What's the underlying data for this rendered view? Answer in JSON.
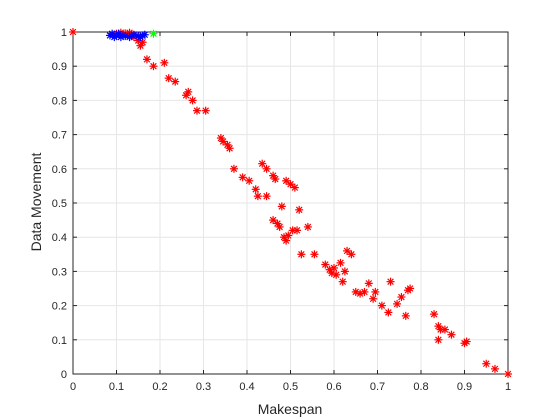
{
  "chart_data": {
    "type": "scatter",
    "title": "",
    "xlabel": "Makespan",
    "ylabel": "Data Movement",
    "xlim": [
      0,
      1
    ],
    "ylim": [
      0,
      1
    ],
    "grid": true,
    "legend": "none",
    "xticks": [
      "0",
      "0.1",
      "0.2",
      "0.3",
      "0.4",
      "0.5",
      "0.6",
      "0.7",
      "0.8",
      "0.9",
      "1"
    ],
    "yticks": [
      "0",
      "0.1",
      "0.2",
      "0.3",
      "0.4",
      "0.5",
      "0.6",
      "0.7",
      "0.8",
      "0.9",
      "1"
    ],
    "marker": "asterisk",
    "colors": {
      "red": "#ff0000",
      "blue": "#0000ff",
      "green": "#00ff00",
      "grid": "#e6e6e6",
      "axis": "#262626"
    },
    "series": [
      {
        "color": "#ff0000",
        "points": [
          [
            0.0,
            1.0
          ],
          [
            0.1,
            0.995
          ],
          [
            0.11,
            0.998
          ],
          [
            0.12,
            0.996
          ],
          [
            0.125,
            0.992
          ],
          [
            0.13,
            0.998
          ],
          [
            0.135,
            0.99
          ],
          [
            0.14,
            0.985
          ],
          [
            0.145,
            0.99
          ],
          [
            0.15,
            0.975
          ],
          [
            0.155,
            0.96
          ],
          [
            0.16,
            0.97
          ],
          [
            0.17,
            0.92
          ],
          [
            0.185,
            0.9
          ],
          [
            0.21,
            0.91
          ],
          [
            0.22,
            0.865
          ],
          [
            0.235,
            0.855
          ],
          [
            0.26,
            0.815
          ],
          [
            0.265,
            0.825
          ],
          [
            0.275,
            0.8
          ],
          [
            0.285,
            0.77
          ],
          [
            0.305,
            0.77
          ],
          [
            0.34,
            0.69
          ],
          [
            0.345,
            0.68
          ],
          [
            0.355,
            0.67
          ],
          [
            0.36,
            0.66
          ],
          [
            0.37,
            0.6
          ],
          [
            0.39,
            0.575
          ],
          [
            0.405,
            0.565
          ],
          [
            0.42,
            0.54
          ],
          [
            0.425,
            0.52
          ],
          [
            0.435,
            0.615
          ],
          [
            0.445,
            0.6
          ],
          [
            0.445,
            0.52
          ],
          [
            0.46,
            0.45
          ],
          [
            0.46,
            0.58
          ],
          [
            0.465,
            0.57
          ],
          [
            0.47,
            0.44
          ],
          [
            0.475,
            0.43
          ],
          [
            0.48,
            0.49
          ],
          [
            0.485,
            0.4
          ],
          [
            0.49,
            0.565
          ],
          [
            0.49,
            0.39
          ],
          [
            0.495,
            0.405
          ],
          [
            0.5,
            0.555
          ],
          [
            0.505,
            0.42
          ],
          [
            0.51,
            0.545
          ],
          [
            0.515,
            0.42
          ],
          [
            0.52,
            0.48
          ],
          [
            0.525,
            0.35
          ],
          [
            0.54,
            0.43
          ],
          [
            0.555,
            0.35
          ],
          [
            0.58,
            0.32
          ],
          [
            0.59,
            0.305
          ],
          [
            0.595,
            0.295
          ],
          [
            0.6,
            0.31
          ],
          [
            0.605,
            0.29
          ],
          [
            0.615,
            0.325
          ],
          [
            0.62,
            0.27
          ],
          [
            0.625,
            0.3
          ],
          [
            0.63,
            0.36
          ],
          [
            0.64,
            0.35
          ],
          [
            0.65,
            0.24
          ],
          [
            0.66,
            0.235
          ],
          [
            0.67,
            0.24
          ],
          [
            0.68,
            0.265
          ],
          [
            0.69,
            0.22
          ],
          [
            0.695,
            0.24
          ],
          [
            0.71,
            0.2
          ],
          [
            0.725,
            0.18
          ],
          [
            0.73,
            0.27
          ],
          [
            0.745,
            0.205
          ],
          [
            0.755,
            0.225
          ],
          [
            0.765,
            0.17
          ],
          [
            0.77,
            0.245
          ],
          [
            0.775,
            0.25
          ],
          [
            0.83,
            0.175
          ],
          [
            0.84,
            0.14
          ],
          [
            0.84,
            0.1
          ],
          [
            0.845,
            0.13
          ],
          [
            0.855,
            0.13
          ],
          [
            0.87,
            0.115
          ],
          [
            0.9,
            0.09
          ],
          [
            0.905,
            0.095
          ],
          [
            0.95,
            0.03
          ],
          [
            0.97,
            0.015
          ],
          [
            1.0,
            0.0
          ]
        ]
      },
      {
        "color": "#0000ff",
        "points": [
          [
            0.085,
            0.99
          ],
          [
            0.09,
            0.995
          ],
          [
            0.095,
            0.985
          ],
          [
            0.1,
            0.99
          ],
          [
            0.105,
            0.995
          ],
          [
            0.11,
            0.985
          ],
          [
            0.115,
            0.99
          ],
          [
            0.12,
            0.988
          ],
          [
            0.13,
            0.985
          ],
          [
            0.135,
            0.99
          ],
          [
            0.14,
            0.992
          ],
          [
            0.15,
            0.988
          ],
          [
            0.155,
            0.985
          ],
          [
            0.16,
            0.99
          ],
          [
            0.165,
            0.992
          ]
        ]
      },
      {
        "color": "#00ff00",
        "points": [
          [
            0.185,
            0.995
          ]
        ]
      }
    ]
  }
}
